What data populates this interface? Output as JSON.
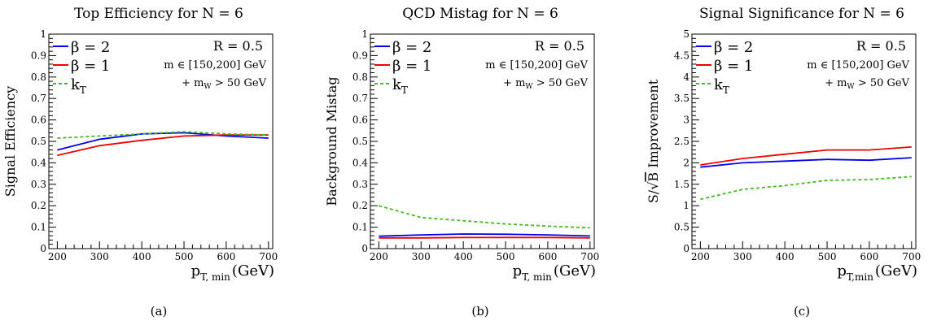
{
  "chart_data": [
    {
      "type": "line",
      "title": "Top Efficiency for N = 6",
      "ylabel": "Signal Efficiency",
      "xlabel_main": "p",
      "xlabel_sub": "T, min",
      "xlabel_unit": "(GeV)",
      "caption": "(a)",
      "xlim": [
        180,
        710
      ],
      "ylim": [
        0,
        1
      ],
      "xticks": [
        200,
        300,
        400,
        500,
        600,
        700
      ],
      "yticks": [
        0,
        0.1,
        0.2,
        0.3,
        0.4,
        0.5,
        0.6,
        0.7,
        0.8,
        0.9,
        1
      ],
      "ytick_labels": [
        "0",
        "0.1",
        "0.2",
        "0.3",
        "0.4",
        "0.5",
        "0.6",
        "0.7",
        "0.8",
        "0.9",
        "1"
      ],
      "annotation_r": "R = 0.5",
      "annotation_mass": "m ∈ [150,200] GeV",
      "annotation_mw": "+ m",
      "annotation_mw_sub": "W",
      "annotation_mw_rest": " > 50 GeV",
      "legend": [
        {
          "label": "β = 2",
          "color": "#0000ee",
          "dash": "solid"
        },
        {
          "label": "β = 1",
          "color": "#ee0000",
          "dash": "solid"
        },
        {
          "label": "k",
          "sub": "T",
          "color": "#44bb22",
          "dash": "dashed"
        }
      ],
      "x": [
        200,
        300,
        400,
        500,
        600,
        700
      ],
      "series": [
        {
          "color": "#0000ee",
          "dash": "solid",
          "values": [
            0.46,
            0.51,
            0.535,
            0.54,
            0.525,
            0.515
          ]
        },
        {
          "color": "#ee0000",
          "dash": "solid",
          "values": [
            0.435,
            0.48,
            0.505,
            0.525,
            0.53,
            0.53
          ]
        },
        {
          "color": "#44bb22",
          "dash": "dashed",
          "values": [
            0.515,
            0.525,
            0.535,
            0.545,
            0.535,
            0.53
          ]
        }
      ]
    },
    {
      "type": "line",
      "title": "QCD Mistag for N = 6",
      "ylabel": "Background Mistag",
      "xlabel_main": "p",
      "xlabel_sub": "T, min",
      "xlabel_unit": "(GeV)",
      "caption": "(b)",
      "xlim": [
        180,
        710
      ],
      "ylim": [
        0,
        1
      ],
      "xticks": [
        200,
        300,
        400,
        500,
        600,
        700
      ],
      "yticks": [
        0,
        0.1,
        0.2,
        0.3,
        0.4,
        0.5,
        0.6,
        0.7,
        0.8,
        0.9,
        1
      ],
      "ytick_labels": [
        "0",
        "0.1",
        "0.2",
        "0.3",
        "0.4",
        "0.5",
        "0.6",
        "0.7",
        "0.8",
        "0.9",
        "1"
      ],
      "annotation_r": "R = 0.5",
      "annotation_mass": "m ∈ [150,200] GeV",
      "annotation_mw": "+ m",
      "annotation_mw_sub": "W",
      "annotation_mw_rest": " > 50 GeV",
      "legend": [
        {
          "label": "β = 2",
          "color": "#0000ee",
          "dash": "solid"
        },
        {
          "label": "β = 1",
          "color": "#ee0000",
          "dash": "solid"
        },
        {
          "label": "k",
          "sub": "T",
          "color": "#44bb22",
          "dash": "dashed"
        }
      ],
      "x": [
        200,
        300,
        400,
        500,
        600,
        700
      ],
      "series": [
        {
          "color": "#0000ee",
          "dash": "solid",
          "values": [
            0.058,
            0.064,
            0.068,
            0.067,
            0.064,
            0.059
          ]
        },
        {
          "color": "#ee0000",
          "dash": "solid",
          "values": [
            0.05,
            0.05,
            0.052,
            0.052,
            0.052,
            0.05
          ]
        },
        {
          "color": "#44bb22",
          "dash": "dashed",
          "values": [
            0.2,
            0.145,
            0.13,
            0.115,
            0.105,
            0.097
          ]
        }
      ]
    },
    {
      "type": "line",
      "title": "Signal Significance for N = 6",
      "ylabel_prefix": "S/",
      "ylabel_sqrt": "B",
      "ylabel_suffix": " Improvement",
      "xlabel_main": "p",
      "xlabel_sub": "T,min",
      "xlabel_unit": "(GeV)",
      "caption": "(c)",
      "xlim": [
        180,
        710
      ],
      "ylim": [
        0,
        5
      ],
      "xticks": [
        200,
        300,
        400,
        500,
        600,
        700
      ],
      "yticks": [
        0,
        0.5,
        1,
        1.5,
        2,
        2.5,
        3,
        3.5,
        4,
        4.5,
        5
      ],
      "ytick_labels": [
        "0",
        "0.5",
        "1",
        "1.5",
        "2",
        "2.5",
        "3",
        "3.5",
        "4",
        "4.5",
        "5"
      ],
      "annotation_r": "R = 0.5",
      "annotation_mass": "m ∈ [150,200] GeV",
      "annotation_mw": "+ m",
      "annotation_mw_sub": "W",
      "annotation_mw_rest": " > 50 GeV",
      "legend": [
        {
          "label": "β = 2",
          "color": "#0000ee",
          "dash": "solid"
        },
        {
          "label": "β = 1",
          "color": "#ee0000",
          "dash": "solid"
        },
        {
          "label": "k",
          "sub": "T",
          "color": "#44bb22",
          "dash": "dashed"
        }
      ],
      "x": [
        200,
        300,
        400,
        500,
        600,
        700
      ],
      "series": [
        {
          "color": "#0000ee",
          "dash": "solid",
          "values": [
            1.9,
            2.0,
            2.04,
            2.08,
            2.06,
            2.12
          ]
        },
        {
          "color": "#ee0000",
          "dash": "solid",
          "values": [
            1.95,
            2.1,
            2.2,
            2.3,
            2.3,
            2.37
          ]
        },
        {
          "color": "#44bb22",
          "dash": "dashed",
          "values": [
            1.15,
            1.38,
            1.47,
            1.59,
            1.61,
            1.68
          ]
        }
      ]
    }
  ]
}
